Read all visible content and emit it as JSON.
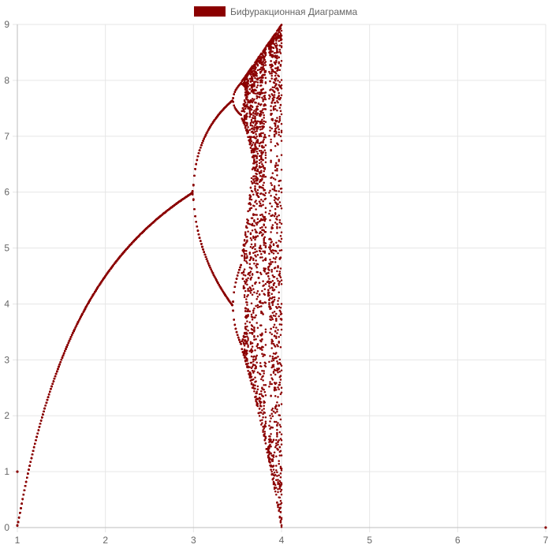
{
  "chart_data": {
    "type": "scatter",
    "legend": {
      "label": "Бифуракционная Диаграмма",
      "position": "top",
      "color": "#8b0000"
    },
    "point_color": "#8b0000",
    "xlim": [
      1,
      7
    ],
    "ylim": [
      0,
      9
    ],
    "x_ticks": [
      "1",
      "2",
      "3",
      "4",
      "5",
      "6",
      "7"
    ],
    "y_ticks": [
      "0",
      "1",
      "2",
      "3",
      "4",
      "5",
      "6",
      "7",
      "8",
      "9"
    ],
    "grid": true,
    "map": "x_{n+1} = r * x_n * (1 - x_n / 9), parameter on x-axis, attractor on y-axis",
    "r_range": [
      1,
      7
    ],
    "r_step": 0.01,
    "transient_iterations": 200,
    "plotted_iterations_per_r": 60,
    "initial_x": 1,
    "capacity": 9,
    "extra_points": [
      {
        "x": 1,
        "y": 1
      },
      {
        "x": 7,
        "y": 0
      }
    ]
  }
}
